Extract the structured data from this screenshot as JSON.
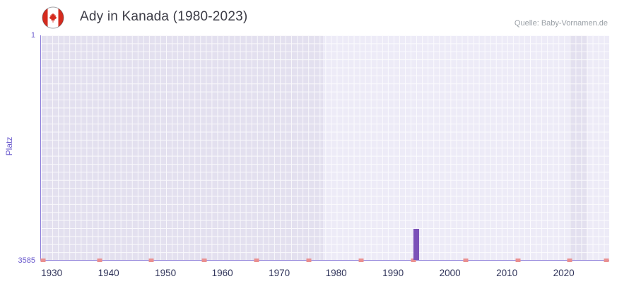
{
  "header": {
    "title": "Ady in Kanada (1980-2023)",
    "source": "Quelle: Baby-Vornamen.de",
    "flag_icon": "canada-flag-icon"
  },
  "theme": {
    "bar_color": "#7b52b8",
    "marker_color": "#ea9090",
    "plot_bg": "#e3e0ef",
    "plot_band_light": "#edebf7",
    "grid_line": "#ffffff",
    "axis_line": "#8a7bd8",
    "axis_text_purple": "#6a5acd",
    "axis_text_dark": "#30345a",
    "title_color": "#3c3c46",
    "source_color": "#9aa0a6",
    "flag_red": "#d52b1e"
  },
  "chart_data": {
    "type": "bar",
    "title": "Ady in Kanada (1980-2023)",
    "ylabel": "Platz",
    "y_axis": {
      "min": 1,
      "max": 3585,
      "inverted": true,
      "top_label": "1",
      "bottom_label": "3585"
    },
    "x_domain": [
      1928,
      2028
    ],
    "x_ticks": [
      1930,
      1940,
      1950,
      1960,
      1970,
      1980,
      1990,
      2000,
      2010,
      2020
    ],
    "series": [
      {
        "year": 1994,
        "rank": 3085
      }
    ],
    "marker_positions_pct": [
      0.4,
      10.3,
      19.4,
      28.7,
      37.9,
      47.1,
      56.3,
      65.5,
      74.7,
      83.9,
      93.0,
      99.5
    ],
    "bands_pct": [
      [
        49.6,
        93.0
      ],
      [
        96.0,
        100
      ]
    ],
    "grid": true,
    "legend": false
  }
}
